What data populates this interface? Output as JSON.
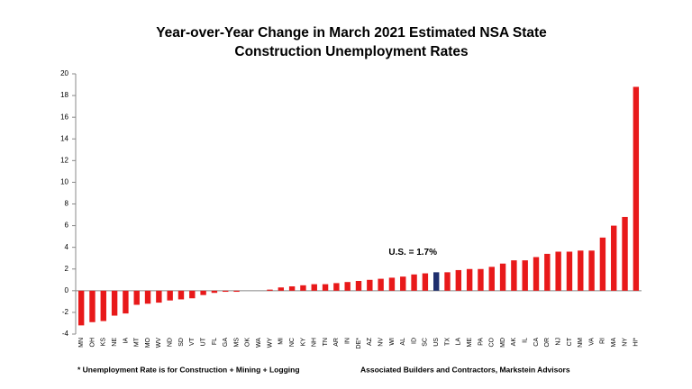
{
  "chart_data": {
    "type": "bar",
    "title": [
      "Year-over-Year Change in March 2021 Estimated NSA State",
      "Construction Unemployment Rates"
    ],
    "categories": [
      "MN",
      "OH",
      "KS",
      "NE",
      "IA",
      "MT",
      "MO",
      "WV",
      "ND",
      "SD",
      "VT",
      "UT",
      "FL",
      "GA",
      "MS",
      "OK",
      "WA",
      "WY",
      "MI",
      "NC",
      "KY",
      "NH",
      "TN",
      "AR",
      "IN",
      "DE*",
      "AZ",
      "NV",
      "WI",
      "AL",
      "ID",
      "SC",
      "US",
      "TX",
      "LA",
      "ME",
      "PA",
      "CO",
      "MD",
      "AK",
      "IL",
      "CA",
      "OR",
      "NJ",
      "CT",
      "NM",
      "VA",
      "RI",
      "MA",
      "NY",
      "HI*"
    ],
    "values": [
      -3.2,
      -2.9,
      -2.8,
      -2.3,
      -2.1,
      -1.3,
      -1.2,
      -1.1,
      -0.9,
      -0.8,
      -0.7,
      -0.4,
      -0.2,
      -0.1,
      -0.1,
      0,
      0,
      0.1,
      0.3,
      0.4,
      0.5,
      0.6,
      0.6,
      0.7,
      0.8,
      0.9,
      1.0,
      1.1,
      1.2,
      1.3,
      1.5,
      1.6,
      1.7,
      1.7,
      1.9,
      2.0,
      2.0,
      2.2,
      2.5,
      2.8,
      2.8,
      3.1,
      3.4,
      3.6,
      3.6,
      3.7,
      3.7,
      4.9,
      6.0,
      6.8,
      18.8
    ],
    "colors": [
      "#e8191a",
      "#e8191a",
      "#e8191a",
      "#e8191a",
      "#e8191a",
      "#e8191a",
      "#e8191a",
      "#e8191a",
      "#e8191a",
      "#e8191a",
      "#e8191a",
      "#e8191a",
      "#e8191a",
      "#e8191a",
      "#e8191a",
      "#e8191a",
      "#e8191a",
      "#e8191a",
      "#e8191a",
      "#e8191a",
      "#e8191a",
      "#e8191a",
      "#e8191a",
      "#e8191a",
      "#e8191a",
      "#e8191a",
      "#e8191a",
      "#e8191a",
      "#e8191a",
      "#e8191a",
      "#e8191a",
      "#e8191a",
      "#1f2f6e",
      "#e8191a",
      "#e8191a",
      "#e8191a",
      "#e8191a",
      "#e8191a",
      "#e8191a",
      "#e8191a",
      "#e8191a",
      "#e8191a",
      "#e8191a",
      "#e8191a",
      "#e8191a",
      "#e8191a",
      "#e8191a",
      "#e8191a",
      "#e8191a",
      "#e8191a",
      "#e8191a"
    ],
    "annotation": "U.S. = 1.7%",
    "footnote": "* Unemployment Rate is for Construction + Mining + Logging",
    "source": "Associated Builders and Contractors, Markstein Advisors",
    "ylim": [
      -4,
      20
    ],
    "yticks": [
      -4,
      -2,
      0,
      2,
      4,
      6,
      8,
      10,
      12,
      14,
      16,
      18,
      20
    ],
    "grid": false
  }
}
